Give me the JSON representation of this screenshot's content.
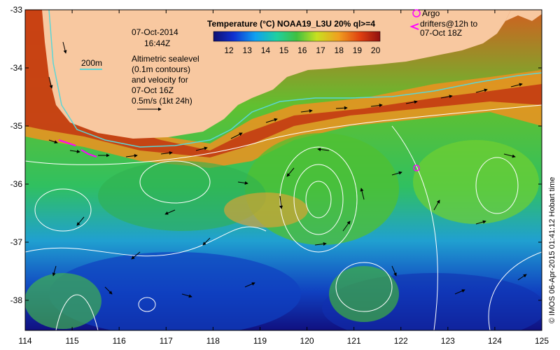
{
  "map": {
    "colorbar": {
      "title": "Temperature (°C) NOAA19_L3U 20% ql>=4",
      "ticks": [
        "12",
        "13",
        "14",
        "15",
        "16",
        "17",
        "18",
        "19",
        "20"
      ]
    },
    "date_label": "07-Oct-2014",
    "time_label": "16:44Z",
    "isobath_label": "200m",
    "altimetry_note": [
      "Altimetric sealevel",
      "(0.1m contours)",
      "and velocity for",
      "07-Oct 16Z",
      "0.5m/s (1kt 24h)"
    ],
    "argo_label": "Argo",
    "drifter_note": [
      "drifters@12h to",
      "07-Oct 18Z"
    ],
    "credit": "© IMOS 06-Apr-2015 01:41:12 Hobart time",
    "lon_ticks": [
      "114",
      "115",
      "116",
      "117",
      "118",
      "119",
      "120",
      "121",
      "122",
      "123",
      "124",
      "125"
    ],
    "lat_ticks": [
      "-33",
      "-34",
      "-35",
      "-36",
      "-37",
      "-38"
    ],
    "colors": {
      "land": "#f8c8a0",
      "isobath": "#5bd6d6",
      "argo": "#ff00ff",
      "contour": "#ffffff"
    }
  }
}
